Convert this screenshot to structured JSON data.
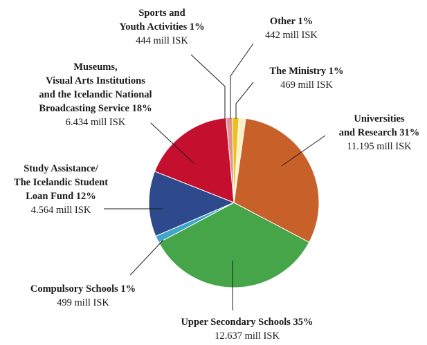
{
  "chart_data": {
    "type": "pie",
    "title": "",
    "unit": "mill ISK",
    "slices": [
      {
        "name_lines": [
          "Universities",
          "and Research 31%"
        ],
        "percent": 31,
        "value": 11195,
        "value_label": "11.195 mill ISK",
        "color": "#C8602A"
      },
      {
        "name_lines": [
          "Upper Secondary Schools 35%"
        ],
        "percent": 35,
        "value": 12637,
        "value_label": "12.637 mill ISK",
        "color": "#45A548"
      },
      {
        "name_lines": [
          "Compulsory Schools 1%"
        ],
        "percent": 1,
        "value": 499,
        "value_label": "499 mill ISK",
        "color": "#3FA6C9"
      },
      {
        "name_lines": [
          "Study Assistance/",
          "The Icelandic Student",
          "Loan Fund 12%"
        ],
        "percent": 12,
        "value": 4564,
        "value_label": "4.564 mill ISK",
        "color": "#2E4A8C"
      },
      {
        "name_lines": [
          "Museums,",
          "Visual Arts Institutions",
          "and the Icelandic National",
          "Broadcasting Service 18%"
        ],
        "percent": 18,
        "value": 6434,
        "value_label": "6.434 mill ISK",
        "color": "#C4102E"
      },
      {
        "name_lines": [
          "Sports and",
          "Youth Activities 1%"
        ],
        "percent": 1,
        "value": 444,
        "value_label": "444 mill ISK",
        "color": "#E0928E"
      },
      {
        "name_lines": [
          "Other 1%"
        ],
        "percent": 1,
        "value": 442,
        "value_label": "442 mill ISK",
        "color": "#E8C31E"
      },
      {
        "name_lines": [
          "The Ministry 1%"
        ],
        "percent": 1,
        "value": 469,
        "value_label": "469 mill ISK",
        "color": "#FBF1C4"
      }
    ]
  }
}
